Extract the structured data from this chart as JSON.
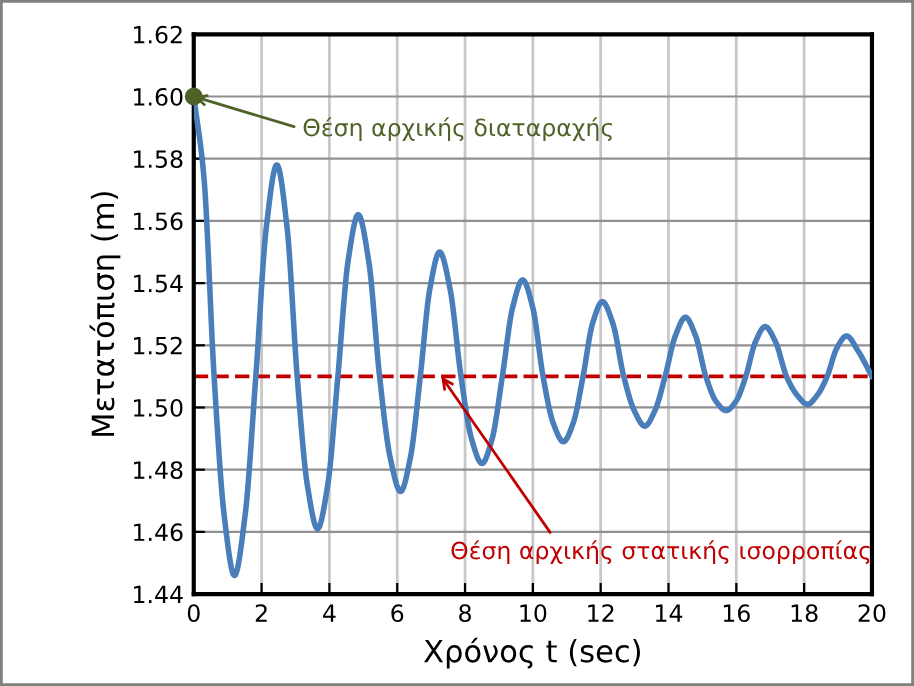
{
  "chart_data": {
    "type": "line",
    "xlabel": "Χρόνος t (sec)",
    "ylabel": "Μετατόπιση (m)",
    "xlim": [
      0,
      20
    ],
    "xticks": [
      0,
      2,
      4,
      6,
      8,
      10,
      12,
      14,
      16,
      18,
      20
    ],
    "ylim": [
      1.44,
      1.62
    ],
    "yticks": [
      1.44,
      1.46,
      1.48,
      {
        "value": 1.5,
        "label": "1.50"
      },
      1.52,
      1.54,
      1.56,
      1.58,
      {
        "value": 1.6,
        "label": "1.60"
      },
      1.62
    ],
    "grid": true,
    "series": [
      {
        "color": "#4a7ebb",
        "marker": "none",
        "line_style": "solid",
        "x": [
          0,
          0.3,
          0.6,
          0.9,
          1.2,
          1.51,
          1.83,
          2.14,
          2.45,
          2.75,
          3.05,
          3.35,
          3.65,
          3.95,
          4.25,
          4.55,
          4.85,
          5.16,
          5.48,
          5.79,
          6.1,
          6.39,
          6.68,
          6.96,
          7.25,
          7.56,
          7.88,
          8.19,
          8.5,
          8.8,
          9.1,
          9.4,
          9.7,
          10.0,
          10.3,
          10.6,
          10.9,
          11.19,
          11.48,
          11.76,
          12.05,
          12.36,
          12.68,
          12.99,
          13.3,
          13.6,
          13.9,
          14.2,
          14.5,
          14.8,
          15.1,
          15.4,
          15.7,
          15.99,
          16.28,
          16.56,
          16.85,
          17.16,
          17.48,
          17.79,
          18.1,
          18.39,
          18.68,
          18.96,
          19.25,
          19.6,
          20
        ],
        "values": [
          1.6,
          1.574,
          1.51,
          1.465,
          1.446,
          1.465,
          1.51,
          1.558,
          1.578,
          1.558,
          1.51,
          1.475,
          1.461,
          1.475,
          1.51,
          1.547,
          1.562,
          1.547,
          1.51,
          1.484,
          1.473,
          1.484,
          1.51,
          1.538,
          1.55,
          1.538,
          1.51,
          1.49,
          1.482,
          1.49,
          1.51,
          1.532,
          1.541,
          1.532,
          1.51,
          1.495,
          1.489,
          1.495,
          1.51,
          1.527,
          1.534,
          1.527,
          1.51,
          1.499,
          1.494,
          1.499,
          1.51,
          1.523,
          1.529,
          1.523,
          1.51,
          1.502,
          1.499,
          1.502,
          1.51,
          1.521,
          1.526,
          1.521,
          1.51,
          1.504,
          1.501,
          1.504,
          1.51,
          1.519,
          1.523,
          1.518,
          1.51
        ]
      },
      {
        "type": "scatter",
        "color": "#4f6228",
        "marker": "circle",
        "x": [
          0
        ],
        "values": [
          1.6
        ]
      }
    ],
    "ref_lines": [
      {
        "axis": "y",
        "value": 1.51,
        "color": "#c00000",
        "line_style": "dashed"
      }
    ],
    "annotations": [
      {
        "text": "Θέση αρχικής διαταραχής",
        "x": 0,
        "y": 1.6
      },
      {
        "text": "Θέση αρχικής στατικής ισορροπίας",
        "x": 7.3,
        "y": 1.51
      }
    ]
  }
}
